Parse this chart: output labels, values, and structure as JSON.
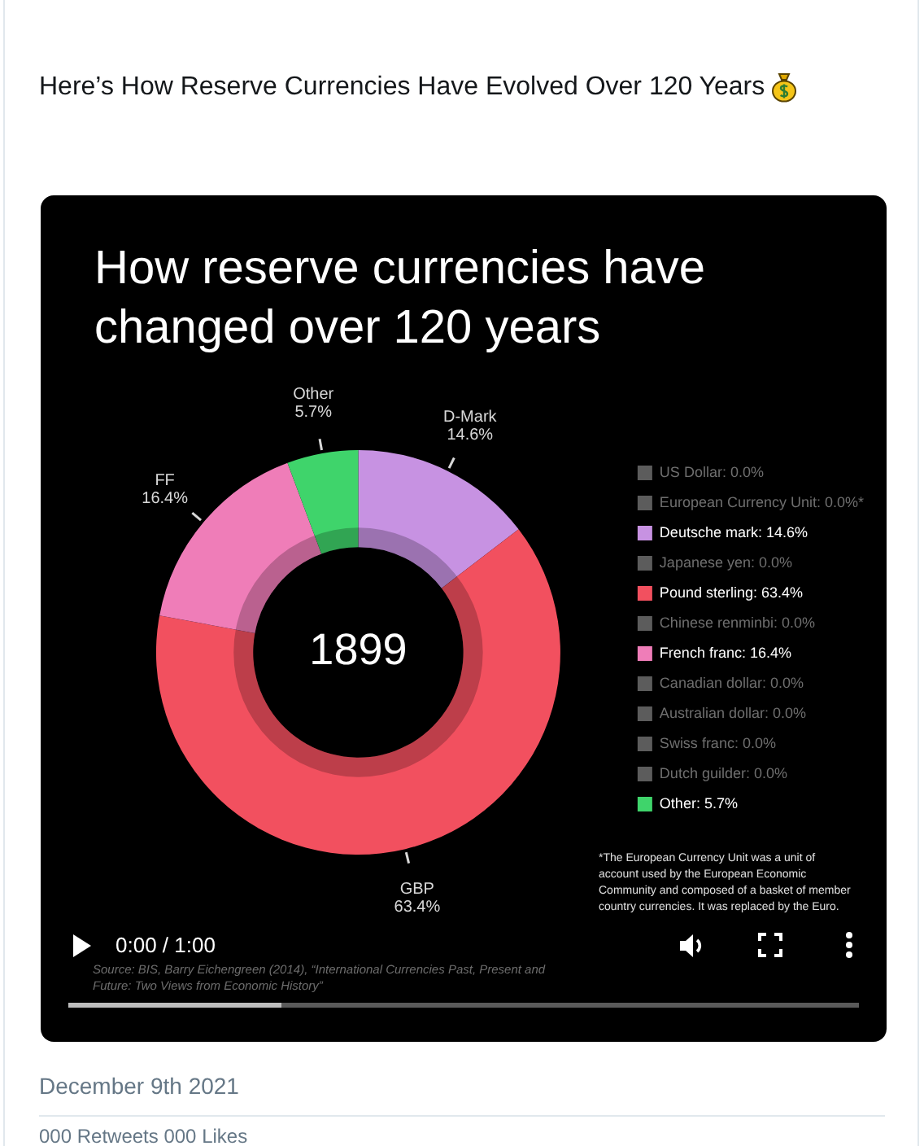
{
  "chart_data": {
    "type": "donut",
    "title": "How reserve currencies have changed over 120 years",
    "categories": [
      "US Dollar: 0.0%",
      "European Currency Unit: 0.0%*",
      "Deutsche mark: 14.6%",
      "Japanese yen: 0.0%",
      "Pound sterling: 63.4%",
      "Chinese renminbi: 0.0%",
      "French franc: 16.4%",
      "Canadian dollar: 0.0%",
      "Australian dollar: 0.0%",
      "Swiss franc: 0.0%",
      "Dutch guilder: 0.0%",
      "Other: 5.7%"
    ],
    "values": [
      0,
      0,
      14.6,
      0,
      63.4,
      0,
      16.4,
      0,
      0,
      0,
      0,
      5.7
    ],
    "colors": [
      "#5c5c5c",
      "#5c5c5c",
      "#c792e2",
      "#5c5c5c",
      "#f2505f",
      "#5c5c5c",
      "#ef7db8",
      "#5c5c5c",
      "#5c5c5c",
      "#5c5c5c",
      "#5c5c5c",
      "#3fd46b"
    ],
    "value_labels": [
      null,
      null,
      "D-Mark 14.6%",
      null,
      "GBP 63.4%",
      null,
      "FF 16.4%",
      null,
      null,
      null,
      null,
      "Other 5.7%"
    ],
    "legend": "right",
    "annotations": [
      "Here’s How Reserve Currencies Have Evolved Over 120 Years",
      "1899",
      "*The European Currency Unit was a unit of account used by the European Economic Community and composed of a basket of member country currencies. It was replaced by the Euro.",
      "Source: BIS, Barry Eichengreen (2014), “International Currencies Past, Present and Future: Two Views from Economic History”",
      "0:00 / 1:00",
      "December 9th 2021",
      "000 Retweets 000 Likes"
    ]
  }
}
